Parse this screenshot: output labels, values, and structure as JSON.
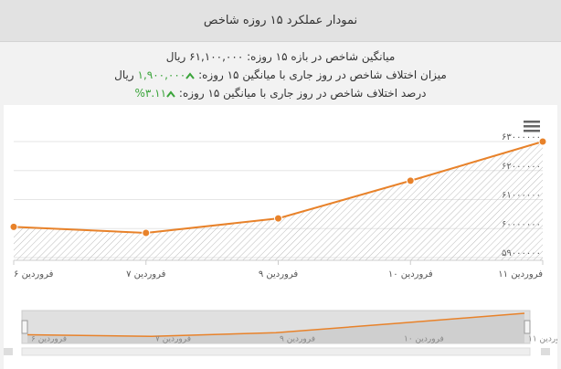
{
  "header": {
    "title": "نمودار عملکرد ۱۵ روزه شاخص"
  },
  "info": [
    {
      "label": "میانگین شاخص در بازه ۱۵ روزه:",
      "value": "۶۱,۱۰۰,۰۰۰",
      "unit": "ریال"
    },
    {
      "label": "میزان اختلاف شاخص در روز جاری با میانگین ۱۵ روزه:",
      "value": "۱,۹۰۰,۰۰۰",
      "unit": "ریال"
    },
    {
      "label": "درصد اختلاف شاخص در روز جاری با میانگین ۱۵ روزه:",
      "value": "۳.۱۱%"
    }
  ],
  "chart_data": {
    "type": "line",
    "categories": [
      "۶ فروردین",
      "۷ فروردین",
      "۹ فروردین",
      "۱۰ فروردین",
      "۱۱ فروردین"
    ],
    "series": [
      {
        "color": "#e8822a",
        "values": [
          60060000,
          59850000,
          60350000,
          61650000,
          63000000
        ]
      }
    ],
    "ylim": [
      59000000,
      63000000
    ],
    "yticks": [
      {
        "value": 59000000,
        "label": "۵۹۰۰۰۰۰۰"
      },
      {
        "value": 60000000,
        "label": "۶۰۰۰۰۰۰۰"
      },
      {
        "value": 61000000,
        "label": "۶۱۰۰۰۰۰۰"
      },
      {
        "value": 62000000,
        "label": "۶۲۰۰۰۰۰۰"
      },
      {
        "value": 63000000,
        "label": "۶۳۰۰۰۰۰۰"
      }
    ],
    "grid": true
  }
}
